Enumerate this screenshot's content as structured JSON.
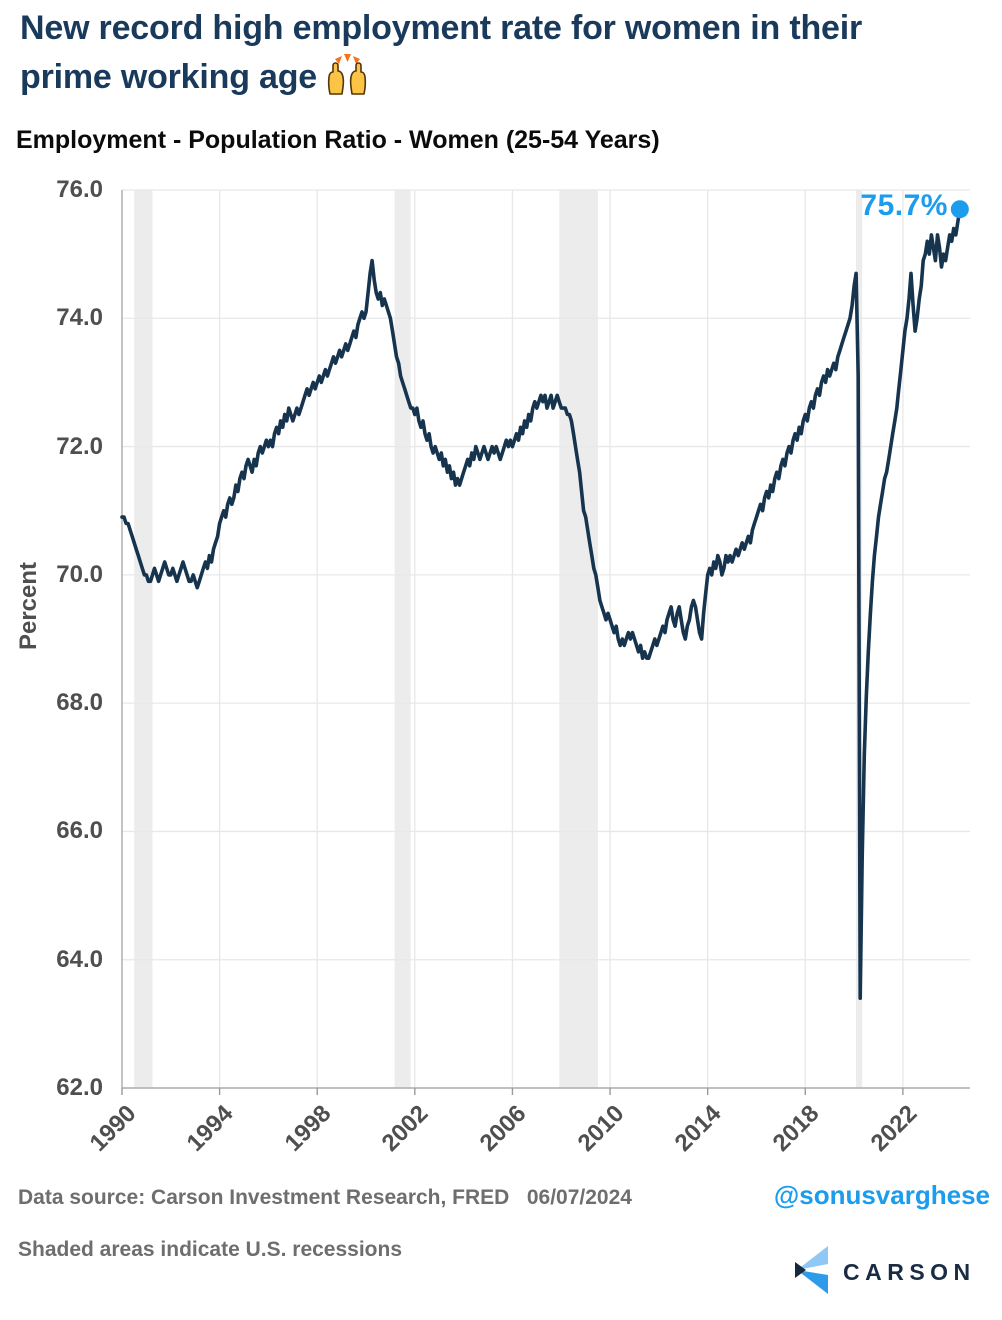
{
  "header": {
    "title_line1": "New record high employment rate for women in their",
    "title_line2": "prime working age",
    "title_emoji": "raising-hands",
    "subtitle": "Employment - Population Ratio - Women (25-54 Years)"
  },
  "chart_data": {
    "type": "line",
    "title": "Employment - Population Ratio - Women (25-54 Years)",
    "xlabel": "",
    "ylabel": "Percent",
    "ylim": [
      62.0,
      76.0
    ],
    "xlim": [
      1990,
      2024.75
    ],
    "grid": true,
    "y_ticks": [
      "62.0",
      "64.0",
      "66.0",
      "68.0",
      "70.0",
      "72.0",
      "74.0",
      "76.0"
    ],
    "x_ticks": [
      "1990",
      "1994",
      "1998",
      "2002",
      "2006",
      "2010",
      "2014",
      "2018",
      "2022"
    ],
    "line_color": "#16344E",
    "accent_color": "#1B9CEC",
    "gridline_color": "#E8E8E8",
    "recession_band_color": "#ECECEC",
    "end_point_label": "75.7%",
    "end_point_value": 75.7,
    "recession_shading": [
      [
        1990.5,
        1991.25
      ],
      [
        2001.17,
        2001.83
      ],
      [
        2007.92,
        2009.5
      ],
      [
        2020.08,
        2020.33
      ]
    ],
    "series": [
      {
        "name": "Employment-Population Ratio - Women (25-54 Years)",
        "frequency": "monthly",
        "start_year": 1990,
        "start_month": 1,
        "values": [
          70.9,
          70.9,
          70.8,
          70.8,
          70.7,
          70.6,
          70.5,
          70.4,
          70.3,
          70.2,
          70.1,
          70.0,
          70.0,
          69.9,
          69.9,
          70.0,
          70.1,
          70.0,
          69.9,
          70.0,
          70.1,
          70.2,
          70.1,
          70.0,
          70.0,
          70.1,
          70.0,
          69.9,
          70.0,
          70.1,
          70.2,
          70.1,
          70.0,
          69.9,
          69.9,
          70.0,
          69.9,
          69.8,
          69.9,
          70.0,
          70.1,
          70.2,
          70.1,
          70.3,
          70.2,
          70.4,
          70.5,
          70.6,
          70.8,
          70.9,
          71.0,
          70.9,
          71.1,
          71.2,
          71.1,
          71.2,
          71.4,
          71.3,
          71.5,
          71.6,
          71.5,
          71.7,
          71.8,
          71.7,
          71.6,
          71.8,
          71.7,
          71.9,
          72.0,
          71.9,
          72.0,
          72.1,
          72.0,
          72.1,
          72.0,
          72.2,
          72.3,
          72.2,
          72.4,
          72.3,
          72.5,
          72.4,
          72.6,
          72.5,
          72.4,
          72.5,
          72.6,
          72.5,
          72.6,
          72.7,
          72.8,
          72.9,
          72.8,
          72.9,
          73.0,
          72.9,
          73.0,
          73.1,
          73.0,
          73.1,
          73.2,
          73.1,
          73.2,
          73.3,
          73.4,
          73.3,
          73.4,
          73.5,
          73.4,
          73.5,
          73.6,
          73.5,
          73.6,
          73.7,
          73.8,
          73.7,
          73.9,
          74.0,
          74.1,
          74.0,
          74.1,
          74.4,
          74.7,
          74.9,
          74.6,
          74.4,
          74.3,
          74.4,
          74.2,
          74.3,
          74.2,
          74.1,
          74.0,
          73.8,
          73.6,
          73.4,
          73.3,
          73.1,
          73.0,
          72.9,
          72.8,
          72.7,
          72.6,
          72.6,
          72.5,
          72.6,
          72.4,
          72.3,
          72.4,
          72.2,
          72.1,
          72.2,
          72.0,
          71.9,
          72.0,
          71.9,
          71.8,
          71.9,
          71.7,
          71.8,
          71.6,
          71.7,
          71.5,
          71.6,
          71.4,
          71.5,
          71.4,
          71.5,
          71.6,
          71.7,
          71.8,
          71.7,
          71.9,
          71.8,
          72.0,
          71.9,
          71.8,
          71.9,
          72.0,
          71.9,
          71.8,
          71.9,
          72.0,
          71.9,
          72.0,
          71.9,
          71.8,
          71.9,
          72.0,
          72.1,
          72.0,
          72.1,
          72.0,
          72.1,
          72.2,
          72.1,
          72.3,
          72.2,
          72.4,
          72.3,
          72.5,
          72.4,
          72.6,
          72.7,
          72.6,
          72.7,
          72.8,
          72.7,
          72.8,
          72.6,
          72.7,
          72.8,
          72.6,
          72.7,
          72.8,
          72.7,
          72.6,
          72.6,
          72.6,
          72.5,
          72.5,
          72.4,
          72.2,
          72.0,
          71.8,
          71.6,
          71.3,
          71.0,
          70.9,
          70.7,
          70.5,
          70.3,
          70.1,
          70.0,
          69.8,
          69.6,
          69.5,
          69.4,
          69.3,
          69.4,
          69.3,
          69.2,
          69.1,
          69.2,
          69.0,
          68.9,
          69.0,
          68.9,
          69.0,
          69.1,
          69.0,
          69.1,
          69.0,
          68.9,
          68.8,
          68.9,
          68.7,
          68.8,
          68.7,
          68.7,
          68.8,
          68.9,
          69.0,
          68.9,
          69.0,
          69.1,
          69.2,
          69.1,
          69.3,
          69.4,
          69.5,
          69.3,
          69.2,
          69.4,
          69.5,
          69.3,
          69.1,
          69.0,
          69.2,
          69.3,
          69.5,
          69.6,
          69.5,
          69.3,
          69.1,
          69.0,
          69.4,
          69.7,
          70.0,
          70.1,
          70.0,
          70.2,
          70.1,
          70.3,
          70.2,
          70.0,
          70.1,
          70.3,
          70.2,
          70.3,
          70.2,
          70.3,
          70.4,
          70.3,
          70.4,
          70.5,
          70.4,
          70.5,
          70.6,
          70.5,
          70.7,
          70.8,
          70.9,
          71.0,
          71.1,
          71.0,
          71.2,
          71.3,
          71.2,
          71.4,
          71.3,
          71.5,
          71.6,
          71.5,
          71.7,
          71.8,
          71.7,
          71.9,
          72.0,
          71.9,
          72.1,
          72.2,
          72.1,
          72.3,
          72.2,
          72.4,
          72.5,
          72.4,
          72.6,
          72.7,
          72.6,
          72.8,
          72.9,
          72.8,
          73.0,
          73.1,
          73.0,
          73.2,
          73.1,
          73.2,
          73.3,
          73.2,
          73.4,
          73.5,
          73.6,
          73.7,
          73.8,
          73.9,
          74.0,
          74.2,
          74.5,
          74.7,
          73.1,
          63.4,
          65.6,
          67.2,
          68.1,
          68.8,
          69.4,
          69.9,
          70.3,
          70.6,
          70.9,
          71.1,
          71.3,
          71.5,
          71.6,
          71.8,
          72.0,
          72.2,
          72.4,
          72.6,
          72.9,
          73.2,
          73.5,
          73.8,
          74.0,
          74.3,
          74.7,
          74.2,
          73.8,
          74.0,
          74.3,
          74.5,
          74.9,
          75.0,
          75.2,
          75.0,
          75.3,
          75.1,
          74.9,
          75.3,
          75.1,
          74.8,
          75.0,
          74.9,
          75.1,
          75.3,
          75.2,
          75.4,
          75.3,
          75.5,
          75.7
        ]
      }
    ]
  },
  "footer": {
    "source_line": "Data source: Carson Investment Research, FRED   06/07/2024",
    "handle": "@sonusvarghese",
    "recession_note": "Shaded areas indicate U.S. recessions",
    "logo_text": "CARSON"
  }
}
